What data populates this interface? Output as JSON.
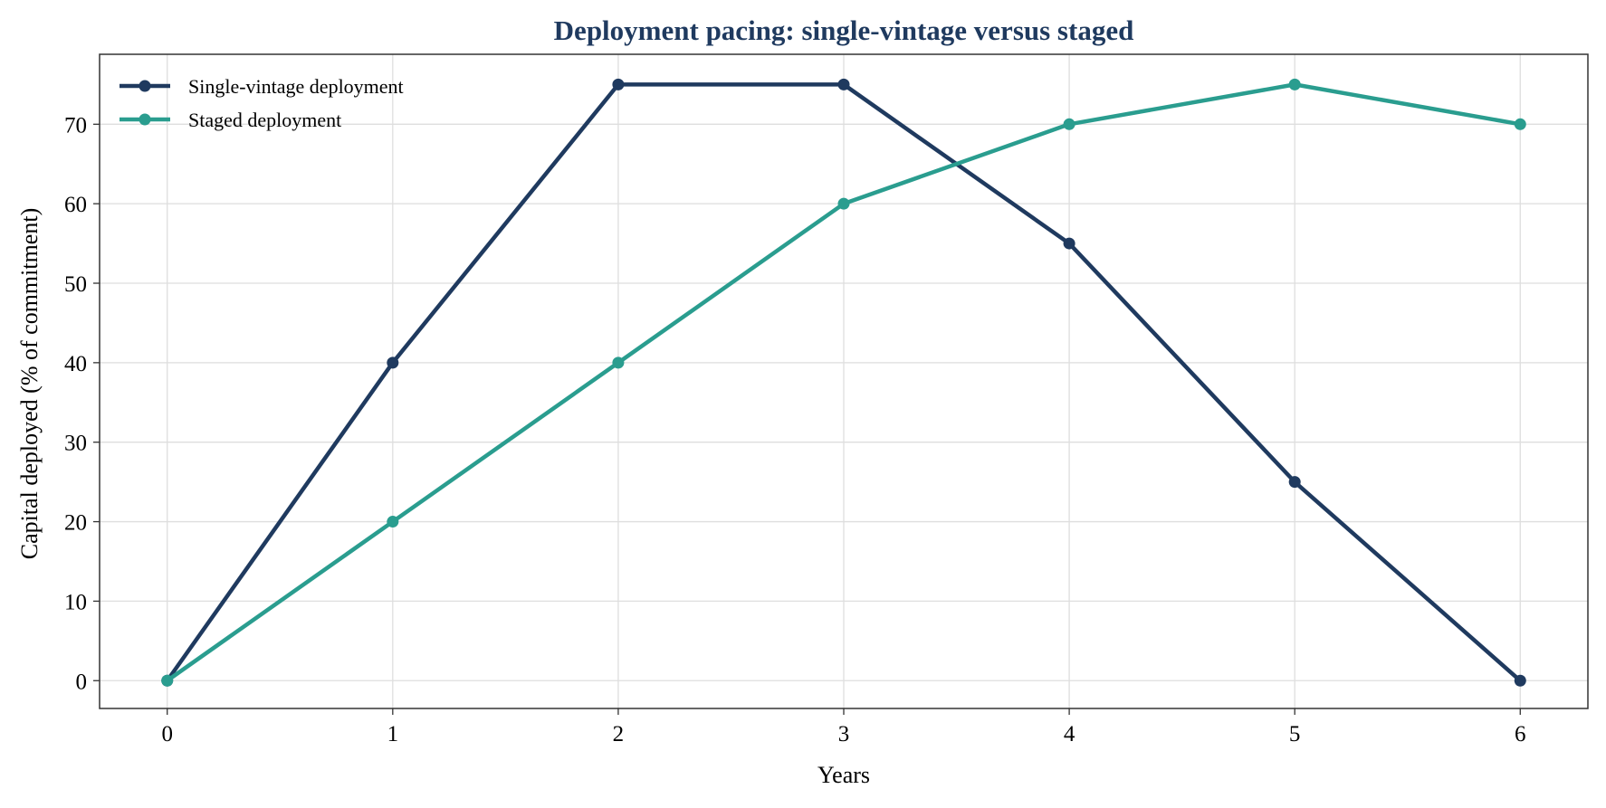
{
  "chart_data": {
    "type": "line",
    "title": "Deployment pacing: single-vintage versus staged",
    "xlabel": "Years",
    "ylabel": "Capital deployed (% of commitment)",
    "x": [
      0,
      1,
      2,
      3,
      4,
      5,
      6
    ],
    "xlim": [
      -0.3,
      6.3
    ],
    "ylim": [
      -3.5,
      78.8
    ],
    "xticks": [
      0,
      1,
      2,
      3,
      4,
      5,
      6
    ],
    "yticks": [
      0,
      10,
      20,
      30,
      40,
      50,
      60,
      70
    ],
    "grid": true,
    "legend_position": "top-left",
    "series": [
      {
        "name": "Single-vintage deployment",
        "color": "#1f3a5f",
        "values": [
          0,
          40,
          75,
          75,
          55,
          25,
          0
        ]
      },
      {
        "name": "Staged deployment",
        "color": "#2a9d8f",
        "values": [
          0,
          20,
          40,
          60,
          70,
          75,
          70
        ]
      }
    ],
    "title_color": "#1f3a5f"
  }
}
